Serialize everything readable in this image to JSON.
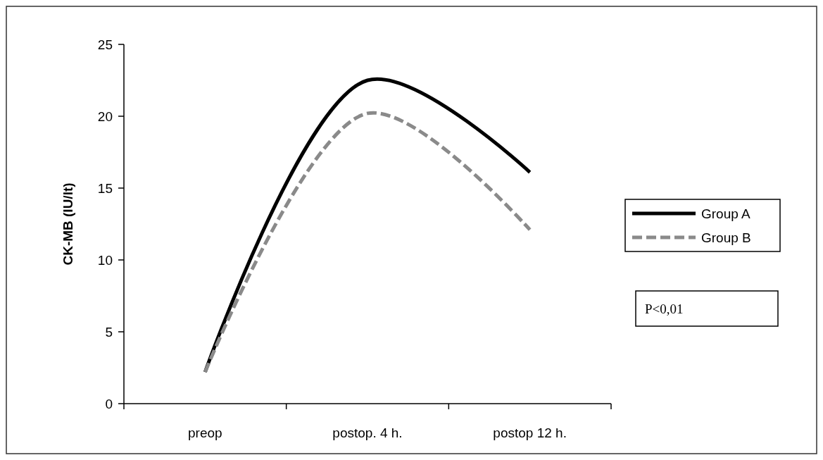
{
  "chart_data": {
    "type": "line",
    "ylabel": "CK-MB (IU/lt)",
    "categories": [
      "preop",
      "postop. 4 h.",
      "postop 12 h."
    ],
    "series": [
      {
        "name": "Group A",
        "color": "#000000",
        "values": [
          2.2,
          22.5,
          16.1
        ]
      },
      {
        "name": "Group B",
        "color": "#8a8a8a",
        "values": [
          2.2,
          20.2,
          12.1
        ],
        "line_style": "dashed"
      }
    ],
    "ylim": [
      0,
      25
    ],
    "yticks": [
      0,
      5,
      10,
      15,
      20,
      25
    ],
    "grid": false,
    "legend": "right",
    "line_style": "solid",
    "marker": "none",
    "annotations": [
      "P<0,01"
    ]
  }
}
